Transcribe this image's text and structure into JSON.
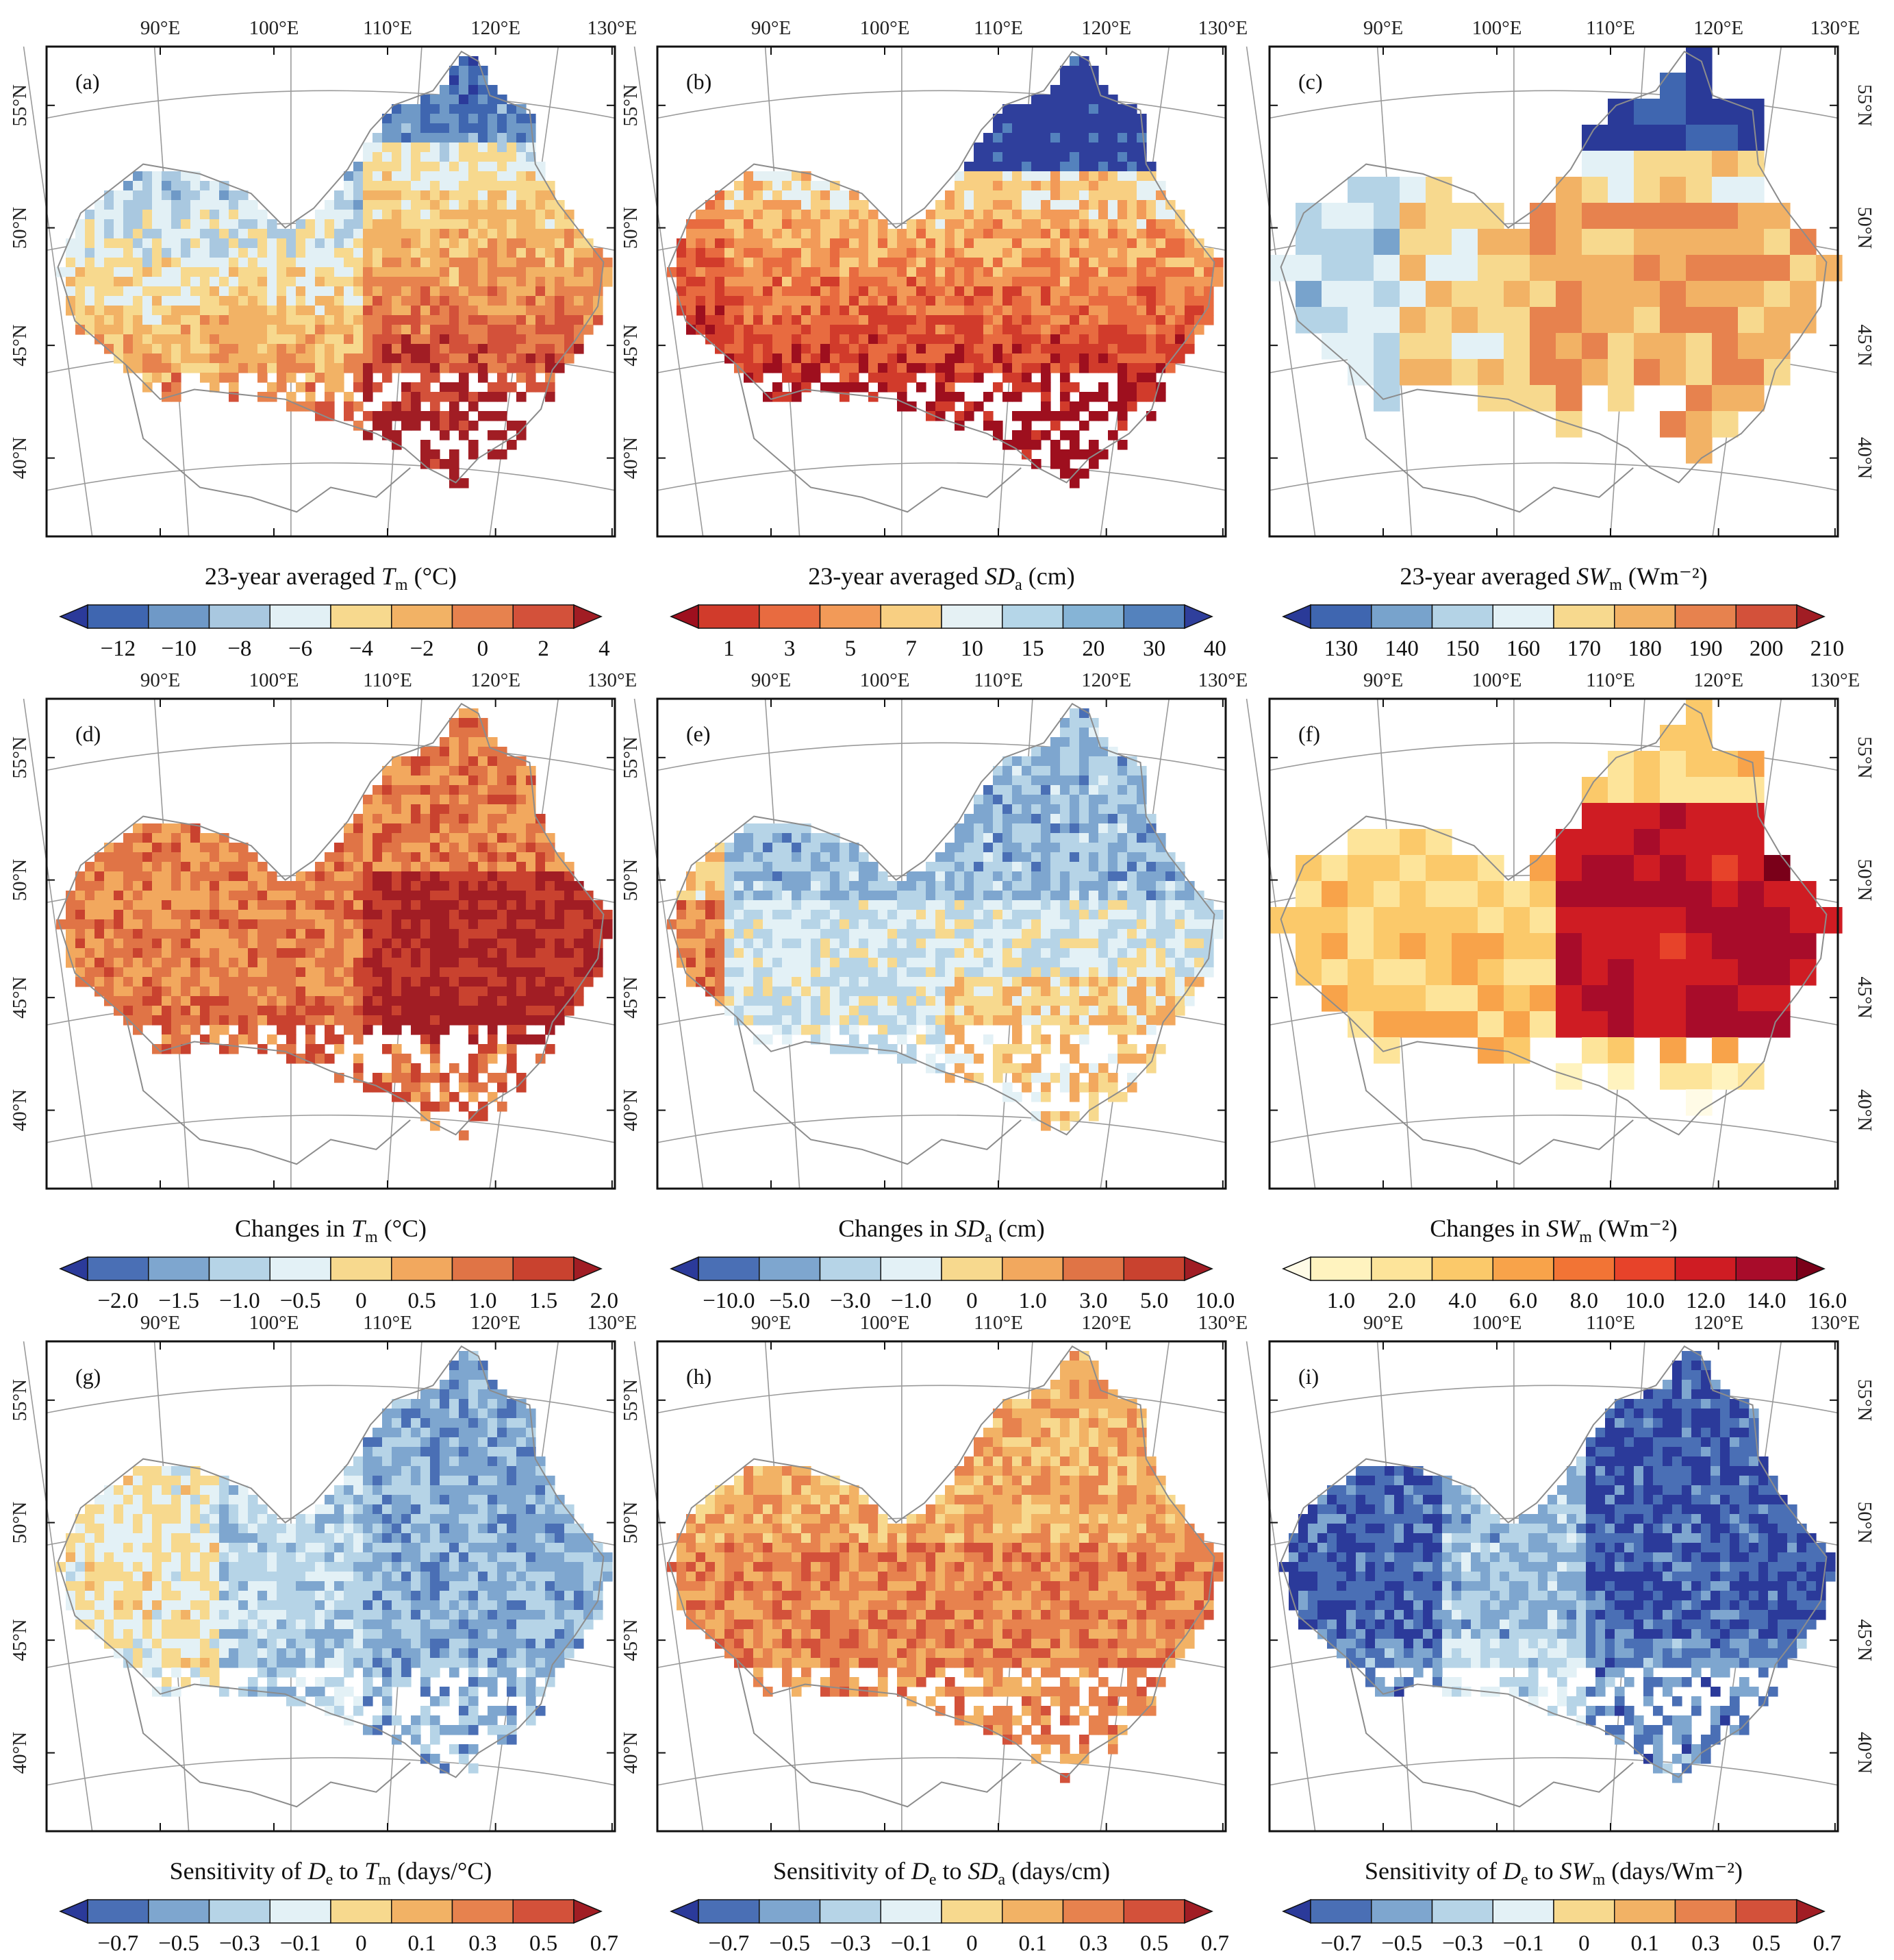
{
  "figure": {
    "panels": [
      {
        "label": "(a)",
        "title": {
          "pre": "23-year averaged ",
          "var": "T",
          "sub": "m",
          "post": " (°C)"
        },
        "ticks": [
          "−12",
          "−10",
          "−8",
          "−6",
          "−4",
          "−2",
          "0",
          "2",
          "4"
        ],
        "palette": [
          "#2b3a9a",
          "#3f66b0",
          "#6f99c7",
          "#a9c8e0",
          "#e2f0f5",
          "#f7d98e",
          "#f2b265",
          "#e7824e",
          "#d3513a",
          "#a11d24"
        ]
      },
      {
        "label": "(b)",
        "title": {
          "pre": "23-year averaged ",
          "var": "SD",
          "sub": "a",
          "post": " (cm)"
        },
        "ticks": [
          "1",
          "3",
          "5",
          "7",
          "10",
          "15",
          "20",
          "30",
          "40"
        ],
        "palette": [
          "#9e0f1e",
          "#d13b2b",
          "#e86b40",
          "#f29a58",
          "#f8cf82",
          "#e5f1f4",
          "#b5d6e8",
          "#86b4d6",
          "#5482bd",
          "#2f3f9c"
        ]
      },
      {
        "label": "(c)",
        "title": {
          "pre": "23-year averaged ",
          "var": "SW",
          "sub": "m",
          "post": " (Wm⁻²)"
        },
        "ticks": [
          "130",
          "140",
          "150",
          "160",
          "170",
          "180",
          "190",
          "200",
          "210"
        ],
        "palette": [
          "#2a3a98",
          "#3f66b0",
          "#78a3cc",
          "#b4d3e6",
          "#e3f1f6",
          "#f7d98e",
          "#f2b265",
          "#e7824e",
          "#d3513a",
          "#a11d24"
        ]
      },
      {
        "label": "(d)",
        "title": {
          "pre": "Changes in ",
          "var": "T",
          "sub": "m",
          "post": " (°C)"
        },
        "ticks": [
          "−2.0",
          "−1.5",
          "−1.0",
          "−0.5",
          "0",
          "0.5",
          "1.0",
          "1.5",
          "2.0"
        ],
        "palette": [
          "#2b3a9a",
          "#4a6fb5",
          "#7ea6cf",
          "#b6d4e7",
          "#e3f1f6",
          "#f7d98e",
          "#f2a85e",
          "#e07446",
          "#c9422f",
          "#a11d24"
        ]
      },
      {
        "label": "(e)",
        "title": {
          "pre": "Changes in ",
          "var": "SD",
          "sub": "a",
          "post": " (cm)"
        },
        "ticks": [
          "−10.0",
          "−5.0",
          "−3.0",
          "−1.0",
          "0",
          "1.0",
          "3.0",
          "5.0",
          "10.0"
        ],
        "palette": [
          "#2b3a9a",
          "#4a6fb5",
          "#7ea6cf",
          "#b6d4e7",
          "#e3f1f6",
          "#f7d98e",
          "#f2a85e",
          "#e07446",
          "#c9422f",
          "#a11d24"
        ]
      },
      {
        "label": "(f)",
        "title": {
          "pre": "Changes in ",
          "var": "SW",
          "sub": "m",
          "post": " (Wm⁻²)"
        },
        "ticks": [
          "1.0",
          "2.0",
          "4.0",
          "6.0",
          "8.0",
          "10.0",
          "12.0",
          "14.0",
          "16.0"
        ],
        "palette": [
          "#fffbe6",
          "#fff3bf",
          "#fde49a",
          "#fbc96a",
          "#f8a34a",
          "#f27435",
          "#e7432a",
          "#cf1c23",
          "#a80c2a",
          "#7a0019"
        ]
      },
      {
        "label": "(g)",
        "title": {
          "pre": "Sensitivity of ",
          "var": "D",
          "sub": "e",
          "post": " to ",
          "var2": "T",
          "sub2": "m",
          "post2": " (days/°C)"
        },
        "ticks": [
          "−0.7",
          "−0.5",
          "−0.3",
          "−0.1",
          "0",
          "0.1",
          "0.3",
          "0.5",
          "0.7"
        ],
        "palette": [
          "#2b3a9a",
          "#4a6fb5",
          "#7ea6cf",
          "#b6d4e7",
          "#e3f1f6",
          "#f7d98e",
          "#f2b265",
          "#e7824e",
          "#d3513a",
          "#a11d24"
        ]
      },
      {
        "label": "(h)",
        "title": {
          "pre": "Sensitivity of ",
          "var": "D",
          "sub": "e",
          "post": " to ",
          "var2": "SD",
          "sub2": "a",
          "post2": " (days/cm)"
        },
        "ticks": [
          "−0.7",
          "−0.5",
          "−0.3",
          "−0.1",
          "0",
          "0.1",
          "0.3",
          "0.5",
          "0.7"
        ],
        "palette": [
          "#2b3a9a",
          "#4a6fb5",
          "#7ea6cf",
          "#b6d4e7",
          "#e3f1f6",
          "#f7d98e",
          "#f2b265",
          "#e7824e",
          "#d3513a",
          "#a11d24"
        ]
      },
      {
        "label": "(i)",
        "title": {
          "pre": "Sensitivity of ",
          "var": "D",
          "sub": "e",
          "post": " to ",
          "var2": "SW",
          "sub2": "m",
          "post2": " (days/Wm⁻²)"
        },
        "ticks": [
          "−0.7",
          "−0.5",
          "−0.3",
          "−0.1",
          "0",
          "0.1",
          "0.3",
          "0.5",
          "0.7"
        ],
        "palette": [
          "#2b3a9a",
          "#4a6fb5",
          "#7ea6cf",
          "#b6d4e7",
          "#e3f1f6",
          "#f7d98e",
          "#f2b265",
          "#e7824e",
          "#d3513a",
          "#a11d24"
        ]
      }
    ],
    "lon_labels": [
      "90°E",
      "100°E",
      "110°E",
      "120°E",
      "130°E"
    ],
    "lat_labels": [
      "55°N",
      "50°N",
      "45°N",
      "40°N"
    ],
    "colors": {
      "frame": "#111111",
      "grid": "#9a9a9a",
      "boundary": "#8c8c8c"
    }
  }
}
